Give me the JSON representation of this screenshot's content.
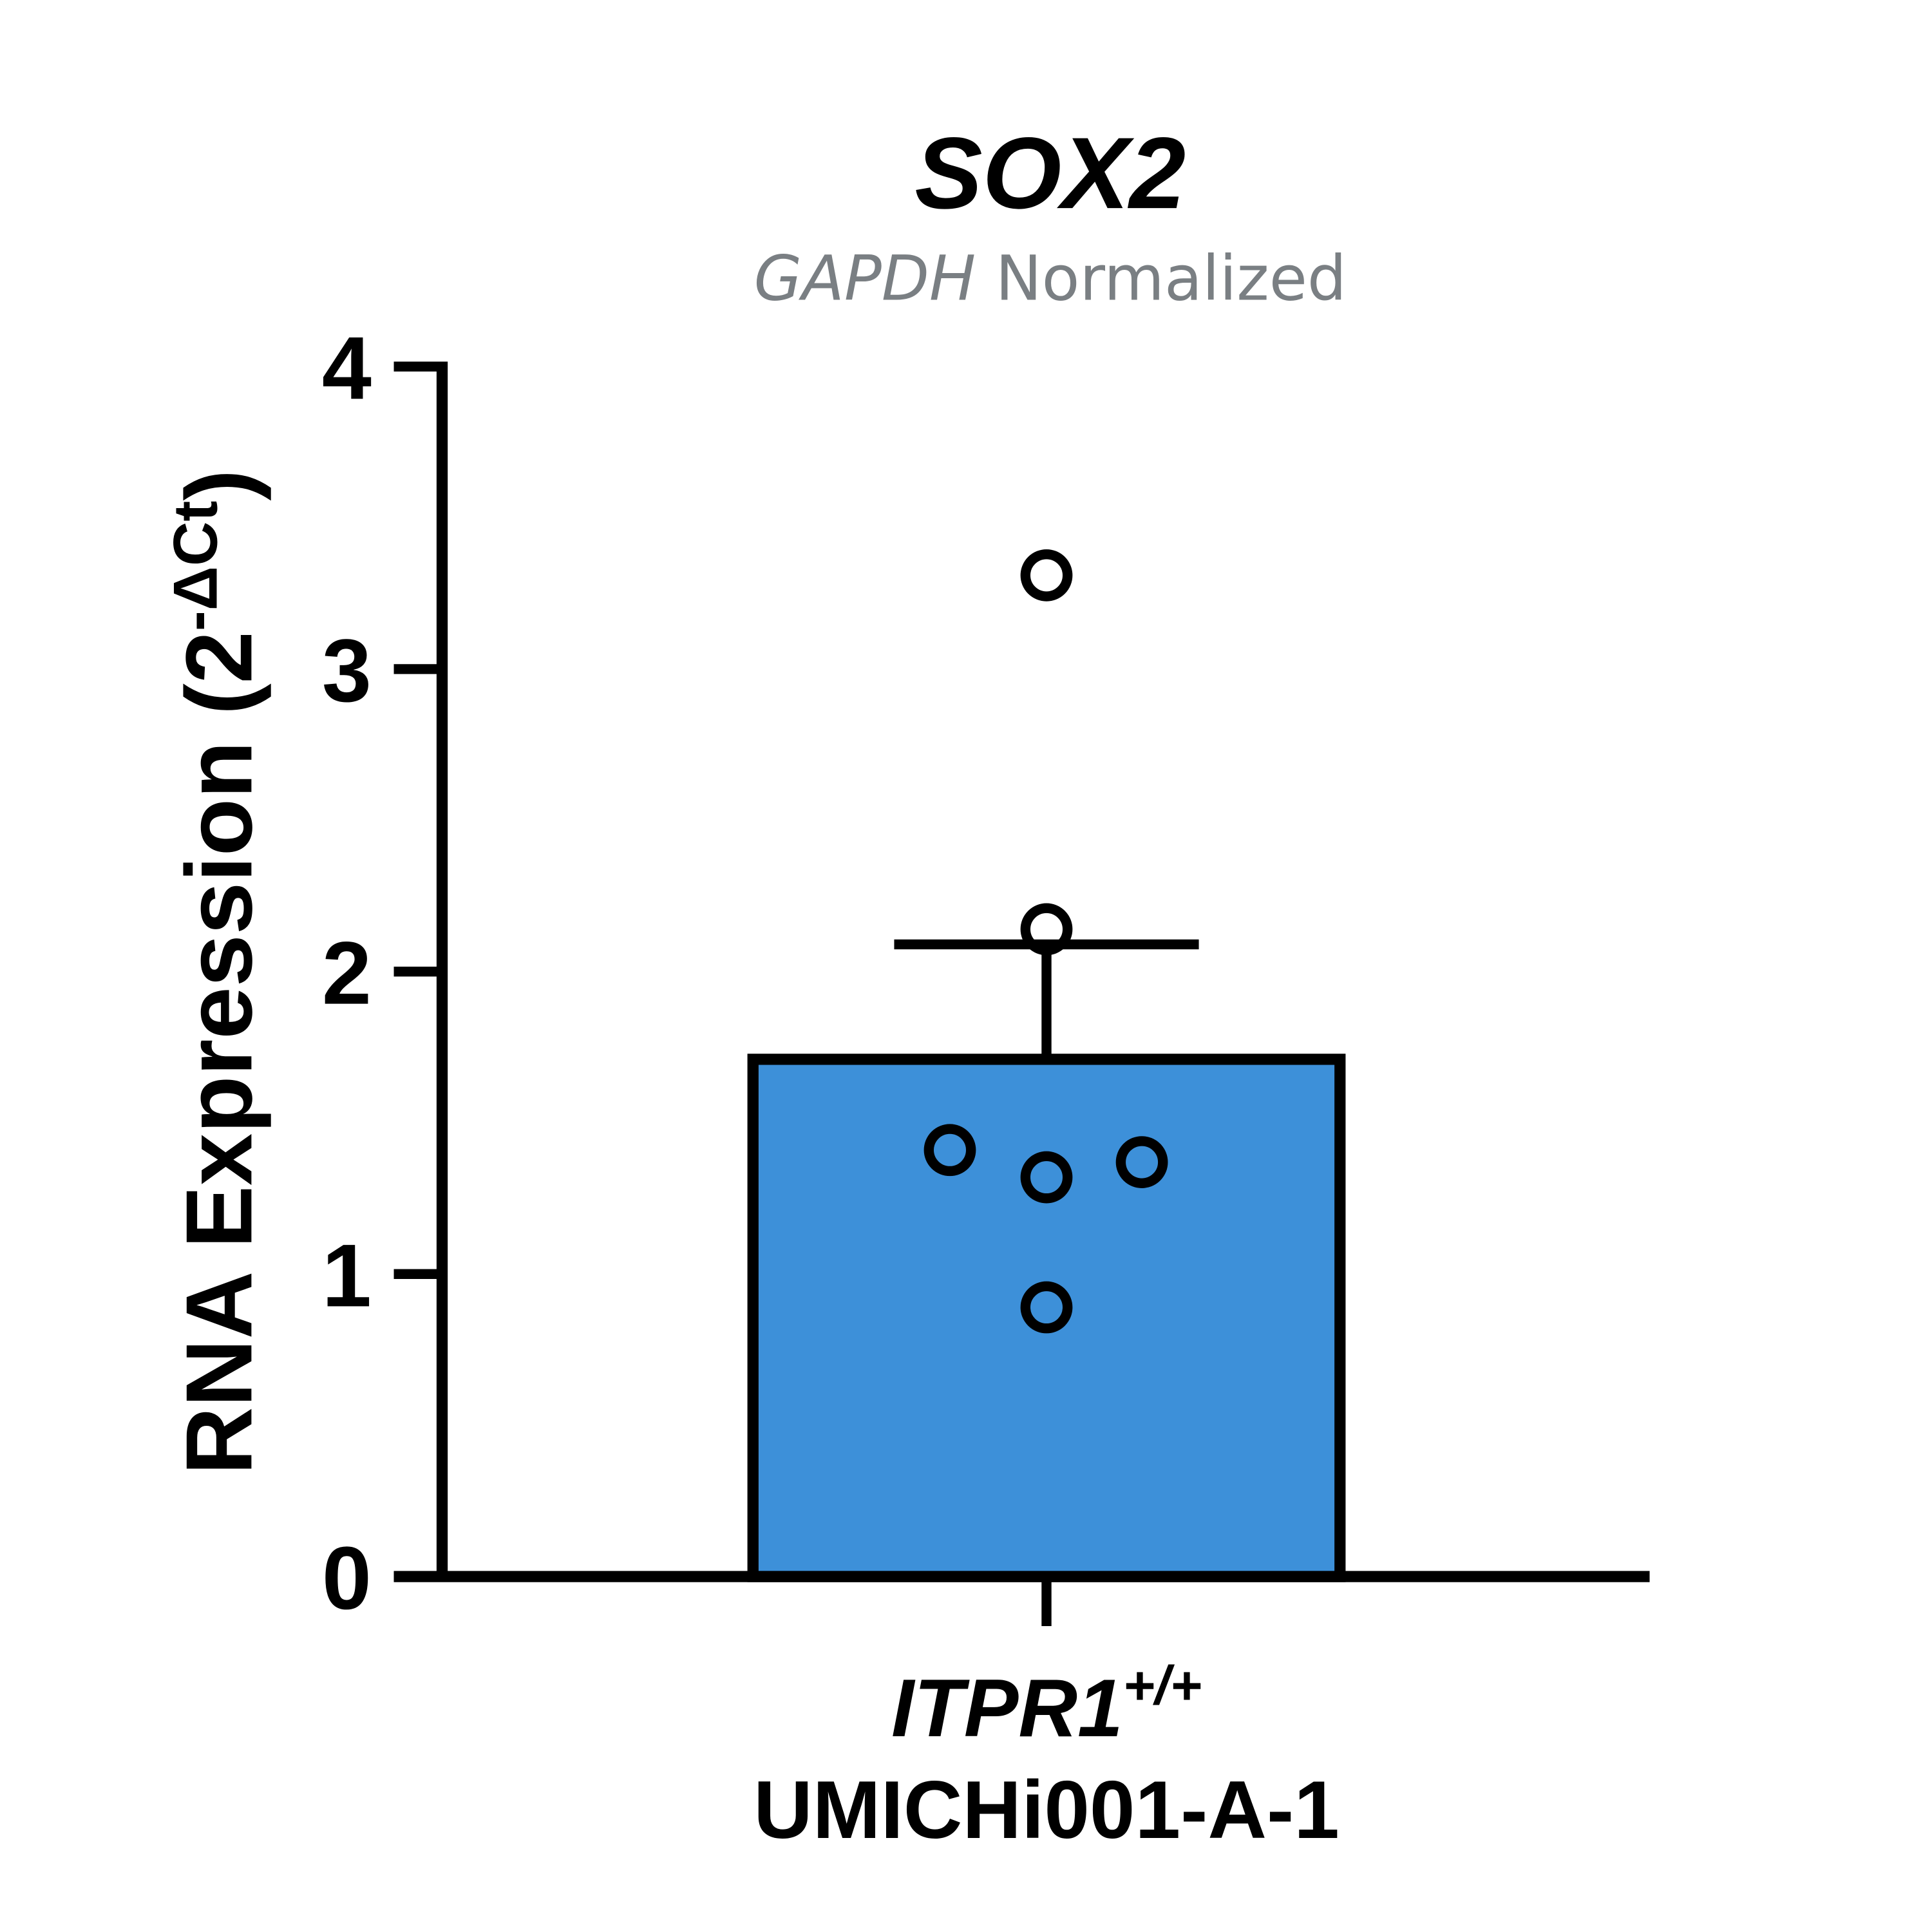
{
  "chart_data": {
    "type": "bar",
    "title": "SOX2",
    "subtitle": {
      "italic_part": "GAPDH",
      "rest": " Normalized"
    },
    "ylabel": {
      "main": "RNA Expression (2",
      "superscript": "-ΔCt",
      "close": ")"
    },
    "ylim": [
      0,
      4
    ],
    "yticks": [
      "0",
      "1",
      "2",
      "3",
      "4"
    ],
    "categories": [
      {
        "gene": "ITPR1",
        "genotype": "+/+",
        "line": "UMICHi001-A-1"
      }
    ],
    "values": [
      1.71
    ],
    "error_upper": [
      2.09
    ],
    "points": [
      [
        3.31,
        2.14,
        1.41,
        1.32,
        1.37,
        0.89
      ]
    ],
    "bar_color": "#3d90d9",
    "grid": false,
    "legend": "none"
  }
}
